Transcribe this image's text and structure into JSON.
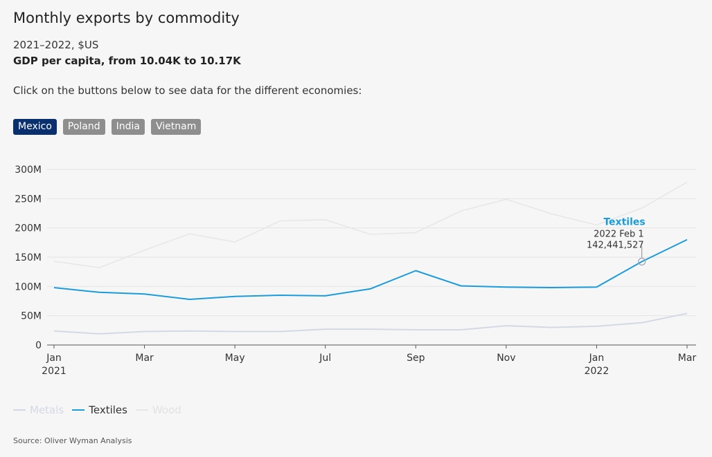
{
  "header": {
    "title": "Monthly exports by commodity",
    "subtitle": "2021–2022, $US",
    "subtitle_bold": "GDP per capita, from 10.04K to 10.17K",
    "instruction": "Click on the buttons below to see data for the different economies:"
  },
  "buttons": [
    {
      "label": "Mexico",
      "active": true
    },
    {
      "label": "Poland",
      "active": false
    },
    {
      "label": "India",
      "active": false
    },
    {
      "label": "Vietnam",
      "active": false
    }
  ],
  "tooltip": {
    "series": "Textiles",
    "date": "2022 Feb 1",
    "value": "142,441,527"
  },
  "source": "Source: Oliver Wyman Analysis",
  "colors": {
    "textiles": "#1a9bdc",
    "metals": "#d3d9e4",
    "wood": "#e7e7e7",
    "active_button": "#0a2f6e",
    "inactive_button": "#8e8e8e"
  },
  "chart_data": {
    "type": "line",
    "x": [
      "2021-01",
      "2021-02",
      "2021-03",
      "2021-04",
      "2021-05",
      "2021-06",
      "2021-07",
      "2021-08",
      "2021-09",
      "2021-10",
      "2021-11",
      "2021-12",
      "2022-01",
      "2022-02",
      "2022-03"
    ],
    "x_tick_labels": [
      {
        "index": 0,
        "label": "Jan",
        "sub": "2021"
      },
      {
        "index": 2,
        "label": "Mar",
        "sub": ""
      },
      {
        "index": 4,
        "label": "May",
        "sub": ""
      },
      {
        "index": 6,
        "label": "Jul",
        "sub": ""
      },
      {
        "index": 8,
        "label": "Sep",
        "sub": ""
      },
      {
        "index": 10,
        "label": "Nov",
        "sub": ""
      },
      {
        "index": 12,
        "label": "Jan",
        "sub": "2022"
      },
      {
        "index": 14,
        "label": "Mar",
        "sub": ""
      }
    ],
    "ylim": [
      0,
      300000000
    ],
    "y_ticks": [
      {
        "value": 0,
        "label": "0"
      },
      {
        "value": 50000000,
        "label": "50M"
      },
      {
        "value": 100000000,
        "label": "100M"
      },
      {
        "value": 150000000,
        "label": "150M"
      },
      {
        "value": 200000000,
        "label": "200M"
      },
      {
        "value": 250000000,
        "label": "250M"
      },
      {
        "value": 300000000,
        "label": "300M"
      }
    ],
    "grid": true,
    "legend_position": "bottom-left",
    "series": [
      {
        "name": "Metals",
        "key": "metals",
        "values": [
          24000000,
          19000000,
          23000000,
          24000000,
          23000000,
          23000000,
          27000000,
          27000000,
          26000000,
          26000000,
          33000000,
          30000000,
          32000000,
          38000000,
          54000000
        ]
      },
      {
        "name": "Textiles",
        "key": "textiles",
        "values": [
          98000000,
          90000000,
          87000000,
          78000000,
          83000000,
          85000000,
          84000000,
          96000000,
          127000000,
          101000000,
          99000000,
          98000000,
          99000000,
          142441527,
          180000000
        ]
      },
      {
        "name": "Wood",
        "key": "wood",
        "values": [
          143000000,
          132000000,
          162000000,
          190000000,
          176000000,
          212000000,
          214000000,
          189000000,
          192000000,
          229000000,
          249000000,
          224000000,
          205000000,
          234000000,
          278000000
        ]
      }
    ]
  }
}
